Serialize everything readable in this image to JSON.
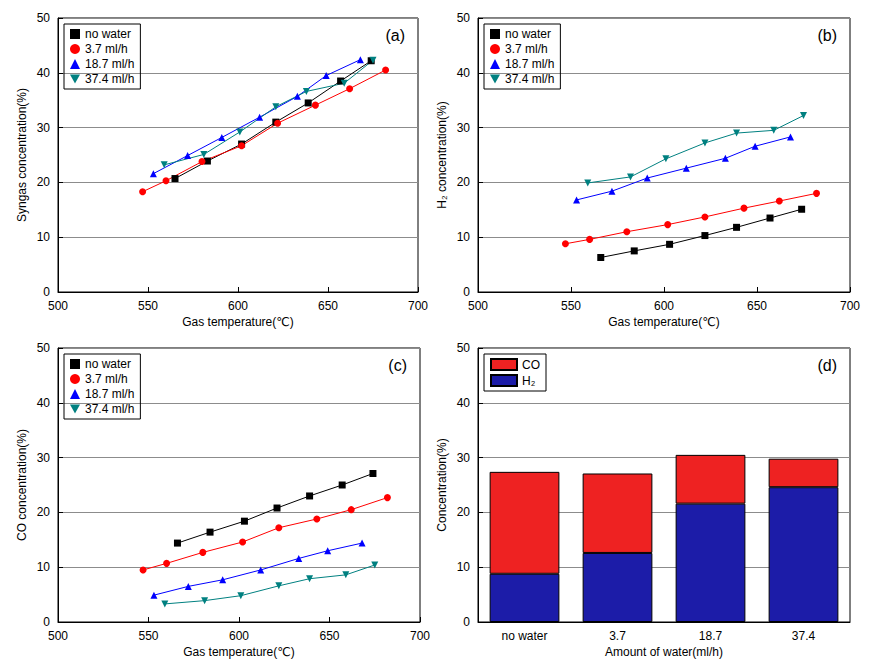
{
  "chart_data": [
    {
      "type": "line",
      "title": "(a)",
      "xlabel": "Gas temperature(℃)",
      "ylabel": "Syngas concentration(%)",
      "xlim": [
        500,
        700
      ],
      "xticks": [
        500,
        550,
        600,
        650,
        700
      ],
      "ylim": [
        0,
        50
      ],
      "yticks": [
        0,
        10,
        20,
        30,
        40,
        50
      ],
      "grid": true,
      "legend": "upper left",
      "series": [
        {
          "name": "no water",
          "color": "#000000",
          "marker": "square",
          "x": [
            565,
            583,
            602,
            621,
            639,
            657,
            674
          ],
          "values": [
            20.7,
            23.9,
            27.0,
            31.0,
            34.5,
            38.5,
            42.2
          ]
        },
        {
          "name": "3.7 ml/h",
          "color": "#ff0000",
          "marker": "circle",
          "x": [
            547,
            560,
            580,
            602,
            622,
            643,
            662,
            682
          ],
          "values": [
            18.3,
            20.3,
            23.8,
            26.7,
            30.8,
            34.1,
            37.1,
            40.5
          ]
        },
        {
          "name": "18.7 ml/h",
          "color": "#0000ff",
          "marker": "triangle-up",
          "x": [
            553,
            572,
            591,
            612,
            633,
            649,
            668
          ],
          "values": [
            21.6,
            24.9,
            28.2,
            31.9,
            35.7,
            39.5,
            42.4
          ]
        },
        {
          "name": "37.4 ml/h",
          "color": "#008080",
          "marker": "triangle-down",
          "x": [
            559,
            581,
            601,
            621,
            638,
            659,
            675
          ],
          "values": [
            23.2,
            25.1,
            29.2,
            33.8,
            36.6,
            38.1,
            42.3
          ]
        }
      ]
    },
    {
      "type": "line",
      "title": "(b)",
      "xlabel": "Gas temperature(℃)",
      "ylabel": "H₂ concentration(%)",
      "xlim": [
        500,
        700
      ],
      "xticks": [
        500,
        550,
        600,
        650,
        700
      ],
      "ylim": [
        0,
        50
      ],
      "yticks": [
        0,
        10,
        20,
        30,
        40,
        50
      ],
      "grid": true,
      "legend": "upper left",
      "series": [
        {
          "name": "no water",
          "color": "#000000",
          "marker": "square",
          "x": [
            566,
            584,
            603,
            622,
            639,
            657,
            674
          ],
          "values": [
            6.3,
            7.5,
            8.7,
            10.3,
            11.8,
            13.5,
            15.1
          ]
        },
        {
          "name": "3.7 ml/h",
          "color": "#ff0000",
          "marker": "circle",
          "x": [
            547,
            560,
            580,
            602,
            622,
            643,
            662,
            682
          ],
          "values": [
            8.8,
            9.6,
            11.0,
            12.3,
            13.7,
            15.3,
            16.6,
            18.0
          ]
        },
        {
          "name": "18.7 ml/h",
          "color": "#0000ff",
          "marker": "triangle-up",
          "x": [
            553,
            572,
            591,
            612,
            633,
            649,
            668
          ],
          "values": [
            16.8,
            18.4,
            20.8,
            22.6,
            24.4,
            26.6,
            28.3
          ]
        },
        {
          "name": "37.4 ml/h",
          "color": "#008080",
          "marker": "triangle-down",
          "x": [
            559,
            582,
            601,
            622,
            639,
            659,
            675
          ],
          "values": [
            19.9,
            21.0,
            24.3,
            27.2,
            29.0,
            29.5,
            32.2
          ]
        }
      ]
    },
    {
      "type": "line",
      "title": "(c)",
      "xlabel": "Gas temperature(℃)",
      "ylabel": "CO concentration(%)",
      "xlim": [
        500,
        700
      ],
      "xticks": [
        500,
        550,
        600,
        650,
        700
      ],
      "ylim": [
        0,
        50
      ],
      "yticks": [
        0,
        10,
        20,
        30,
        40,
        50
      ],
      "grid": true,
      "legend": "upper left",
      "series": [
        {
          "name": "no water",
          "color": "#000000",
          "marker": "square",
          "x": [
            566,
            584,
            603,
            621,
            639,
            657,
            674
          ],
          "values": [
            14.4,
            16.4,
            18.4,
            20.8,
            23.0,
            25.0,
            27.1
          ]
        },
        {
          "name": "3.7 ml/h",
          "color": "#ff0000",
          "marker": "circle",
          "x": [
            547,
            560,
            580,
            602,
            622,
            643,
            662,
            682
          ],
          "values": [
            9.5,
            10.7,
            12.7,
            14.6,
            17.2,
            18.8,
            20.5,
            22.7
          ]
        },
        {
          "name": "18.7 ml/h",
          "color": "#0000ff",
          "marker": "triangle-up",
          "x": [
            553,
            572,
            591,
            612,
            633,
            649,
            668
          ],
          "values": [
            4.9,
            6.5,
            7.7,
            9.5,
            11.6,
            13.0,
            14.4
          ]
        },
        {
          "name": "37.4 ml/h",
          "color": "#008080",
          "marker": "triangle-down",
          "x": [
            559,
            581,
            601,
            622,
            639,
            659,
            675
          ],
          "values": [
            3.3,
            3.9,
            4.8,
            6.6,
            7.9,
            8.6,
            10.4
          ]
        }
      ]
    },
    {
      "type": "bar",
      "title": "(d)",
      "xlabel": "Amount of water(ml/h)",
      "ylabel": "Concentration(%)",
      "categories": [
        "no water",
        "3.7",
        "18.7",
        "37.4"
      ],
      "ylim": [
        0,
        50
      ],
      "yticks": [
        0,
        10,
        20,
        30,
        40,
        50
      ],
      "grid": true,
      "legend": "upper left",
      "stacked": true,
      "series": [
        {
          "name": "H₂",
          "color": "#1c1ca8",
          "values": [
            8.8,
            12.6,
            21.6,
            24.6
          ]
        },
        {
          "name": "CO",
          "color": "#ee2222",
          "values": [
            18.6,
            14.5,
            8.9,
            5.2
          ]
        }
      ]
    }
  ]
}
